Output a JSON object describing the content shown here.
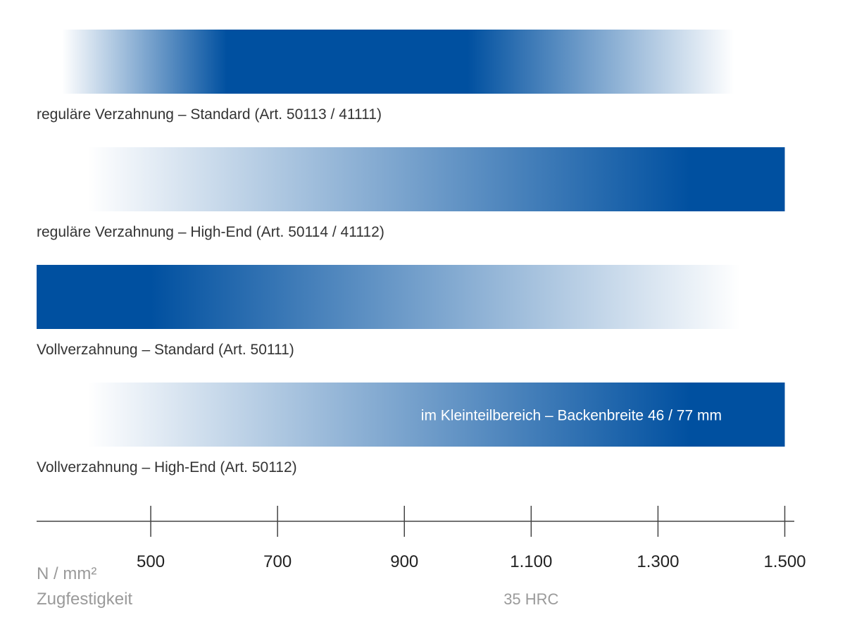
{
  "chart_data": {
    "type": "bar",
    "orientation": "horizontal",
    "style": "gradient-range",
    "bar_color": "#0050A0",
    "fade_color": "#FFFFFF",
    "axis_color": "#444444",
    "label_color": "#333333",
    "muted_color": "#9A9A9A",
    "inside_label_color": "#FFFFFF",
    "xlim": [
      320,
      1515
    ],
    "ticks": [
      500,
      700,
      900,
      1100,
      1300,
      1500
    ],
    "tick_labels": [
      "500",
      "700",
      "900",
      "1.100",
      "1.300",
      "1.500"
    ],
    "unit_label": "N / mm²",
    "xlabel": "Zugfestigkeit",
    "secondary_marker": {
      "value": 1100,
      "label": "35 HRC"
    },
    "bars": [
      {
        "label": "reguläre Verzahnung – Standard (Art. 50113 / 41111)",
        "start": 360,
        "end": 1420,
        "stops": [
          {
            "value": 360,
            "strength": 0
          },
          {
            "value": 620,
            "strength": 1
          },
          {
            "value": 1000,
            "strength": 1
          },
          {
            "value": 1420,
            "strength": 0
          }
        ]
      },
      {
        "label": "reguläre Verzahnung – High-End (Art. 50114 / 41112)",
        "start": 400,
        "end": 1500,
        "stops": [
          {
            "value": 400,
            "strength": 0
          },
          {
            "value": 1350,
            "strength": 1
          },
          {
            "value": 1500,
            "strength": 1
          }
        ]
      },
      {
        "label": "Vollverzahnung – Standard (Art. 50111)",
        "start": 320,
        "end": 1430,
        "stops": [
          {
            "value": 320,
            "strength": 1
          },
          {
            "value": 500,
            "strength": 1
          },
          {
            "value": 1430,
            "strength": 0
          }
        ]
      },
      {
        "label": "Vollverzahnung – High-End (Art. 50112)",
        "start": 400,
        "end": 1500,
        "stops": [
          {
            "value": 400,
            "strength": 0
          },
          {
            "value": 1350,
            "strength": 1
          },
          {
            "value": 1500,
            "strength": 1
          }
        ],
        "inner_label": "im Kleinteilbereich – Backenbreite 46 / 77 mm"
      }
    ]
  }
}
